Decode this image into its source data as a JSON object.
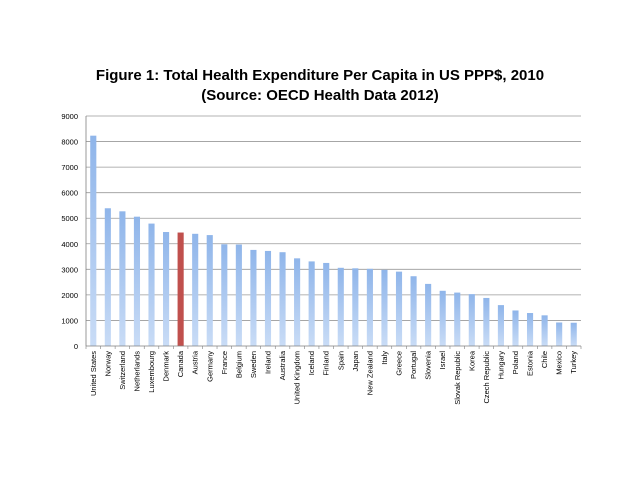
{
  "chart_data": {
    "type": "bar",
    "title": "Figure 1: Total Health Expenditure  Per Capita in  US PPP$, 2010",
    "subtitle": "(Source: OECD Health Data 2012)",
    "xlabel": "",
    "ylabel": "",
    "ylim": [
      0,
      9000
    ],
    "yticks": [
      "0",
      "1000",
      "2000",
      "3000",
      "4000",
      "5000",
      "6000",
      "7000",
      "8000",
      "9000"
    ],
    "grid": true,
    "legend": "none",
    "categories": [
      "United States",
      "Norway",
      "Switzerland",
      "Netherlands",
      "Luxembourg",
      "Denmark",
      "Canada",
      "Austria",
      "Germany",
      "France",
      "Belgium",
      "Sweden",
      "Ireland",
      "Australia",
      "United Kingdom",
      "Iceland",
      "Finland",
      "Spain",
      "Japan",
      "New Zealand",
      "Italy",
      "Greece",
      "Portugal",
      "Slovenia",
      "Israel",
      "Slovak Republic",
      "Korea",
      "Czech Republic",
      "Hungary",
      "Poland",
      "Estonia",
      "Chile",
      "Mexico",
      "Turkey"
    ],
    "values": [
      8230,
      5390,
      5270,
      5060,
      4790,
      4460,
      4440,
      4390,
      4340,
      3980,
      3970,
      3760,
      3720,
      3670,
      3430,
      3310,
      3250,
      3060,
      3040,
      3020,
      2980,
      2910,
      2730,
      2430,
      2160,
      2090,
      2030,
      1880,
      1600,
      1390,
      1290,
      1200,
      920,
      910
    ],
    "highlight_category": "Canada",
    "colors": {
      "bar": "#8fb5ea",
      "bar_light": "#c9dcf6",
      "highlight": "#c0504d",
      "grid": "#9a9a9a"
    }
  }
}
